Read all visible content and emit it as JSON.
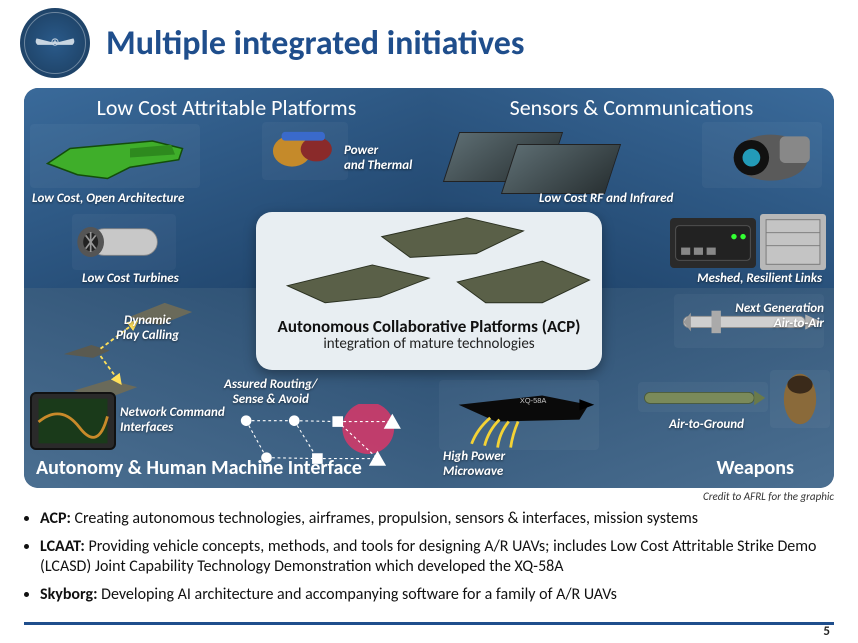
{
  "slide": {
    "title": "Multiple integrated initiatives",
    "page_number": "5",
    "credit": "Credit to AFRL for the graphic",
    "colors": {
      "title_color": "#1f4e8c",
      "quad_bg_top": "#2f5d8c",
      "quad_bg_bottom": "#4a6e90",
      "center_bg": "#e8eef2",
      "footer_line": "#1f4e8c"
    }
  },
  "quadrants": {
    "tl": {
      "heading": "Low Cost Attritable Platforms",
      "labels": {
        "arch": "Low Cost, Open Architecture",
        "power": "Power\nand Thermal",
        "turbines": "Low Cost Turbines"
      }
    },
    "tr": {
      "heading": "Sensors & Communications",
      "labels": {
        "rf": "Low Cost RF and Infrared",
        "links": "Meshed, Resilient Links"
      }
    },
    "bl": {
      "heading": "Autonomy & Human Machine Interface",
      "labels": {
        "dynamic": "Dynamic\nPlay Calling",
        "nci": "Network Command\nInterfaces",
        "routing": "Assured Routing/\nSense & Avoid"
      }
    },
    "br": {
      "heading": "Weapons",
      "labels": {
        "a2a": "Next Generation\nAir-to-Air",
        "a2g": "Air-to-Ground",
        "hpm": "High Power\nMicrowave"
      }
    }
  },
  "center": {
    "title": "Autonomous Collaborative Platforms (ACP)",
    "subtitle": "integration of mature technologies"
  },
  "bullets": {
    "acp_label": "ACP:",
    "acp_text": " Creating autonomous technologies, airframes, propulsion, sensors & interfaces, mission systems",
    "lcaat_label": "LCAAT:",
    "lcaat_text": "  Providing vehicle concepts, methods, and tools for designing A/R UAVs; includes Low Cost Attritable Strike Demo (LCASD) Joint Capability Technology Demonstration which developed the XQ-58A",
    "skyborg_label": "Skyborg:",
    "skyborg_text": "  Developing AI architecture and accompanying software for a family of A/R UAVs"
  }
}
